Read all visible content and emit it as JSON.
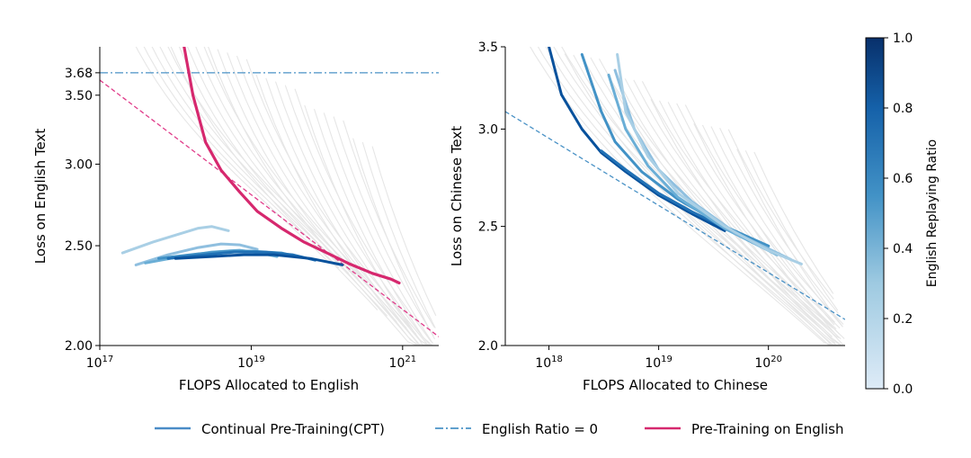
{
  "chart_data": [
    {
      "type": "line",
      "xlabel": "FLOPS Allocated to English",
      "ylabel": "Loss on English Text",
      "x_scale": "log",
      "y_scale": "log",
      "xlim": [
        1e+17,
        3e+21
      ],
      "ylim": [
        2.0,
        4.0
      ],
      "x_ticks": [
        {
          "value": 1e+17,
          "base": "10",
          "exp": "17"
        },
        {
          "value": 1e+19,
          "base": "10",
          "exp": "19"
        },
        {
          "value": 1e+21,
          "base": "10",
          "exp": "21"
        }
      ],
      "y_ticks": [
        {
          "value": 2.0,
          "label": "2.00"
        },
        {
          "value": 2.5,
          "label": "2.50"
        },
        {
          "value": 3.0,
          "label": "3.00"
        },
        {
          "value": 3.5,
          "label": "3.50"
        },
        {
          "value": 3.68,
          "label": "3.68"
        }
      ],
      "reference_lines": [
        {
          "name": "English Ratio = 0",
          "kind": "horizontal",
          "y": 3.68,
          "color": "#4a92c6",
          "style": "dashdot"
        },
        {
          "name": "Pre-Training on English fit",
          "kind": "segment",
          "color": "#e03c8a",
          "style": "dashed",
          "x": [
            1e+17,
            3e+21
          ],
          "y": [
            3.62,
            2.04
          ]
        }
      ],
      "series": [
        {
          "name": "Pre-Training on English",
          "color": "#d6286e",
          "x": [
            1.3e+18,
            1.7e+18,
            2.5e+18,
            4e+18,
            7e+18,
            1.2e+19,
            2.5e+19,
            5e+19,
            1e+20,
            2e+20,
            4e+20,
            7e+20,
            9e+20
          ],
          "y": [
            3.9,
            3.5,
            3.15,
            2.96,
            2.82,
            2.7,
            2.6,
            2.52,
            2.46,
            2.4,
            2.35,
            2.32,
            2.3
          ]
        },
        {
          "name": "CPT ratio 0.1",
          "color": "#a9cfe5",
          "x": [
            2e+17,
            5e+17,
            1e+18,
            2e+18,
            3e+18,
            5e+18
          ],
          "y": [
            2.46,
            2.52,
            2.56,
            2.6,
            2.61,
            2.585
          ]
        },
        {
          "name": "CPT ratio 0.2",
          "color": "#8fbfdf",
          "x": [
            3e+17,
            8e+17,
            2e+18,
            4e+18,
            7e+18,
            1.2e+19
          ],
          "y": [
            2.395,
            2.45,
            2.49,
            2.51,
            2.505,
            2.48
          ]
        },
        {
          "name": "CPT ratio 0.4",
          "color": "#6aaed6",
          "x": [
            4e+17,
            1e+18,
            3e+18,
            7e+18,
            1.3e+19,
            2.2e+19
          ],
          "y": [
            2.405,
            2.435,
            2.465,
            2.475,
            2.46,
            2.44
          ]
        },
        {
          "name": "CPT ratio 0.6",
          "color": "#4292c6",
          "x": [
            6e+17,
            2e+18,
            5e+18,
            1e+19,
            2.5e+19,
            4e+19
          ],
          "y": [
            2.43,
            2.455,
            2.47,
            2.47,
            2.46,
            2.44
          ]
        },
        {
          "name": "CPT ratio 0.8",
          "color": "#2171b5",
          "x": [
            8e+17,
            2.5e+18,
            6e+18,
            1.5e+19,
            3.5e+19,
            7e+19
          ],
          "y": [
            2.43,
            2.45,
            2.465,
            2.465,
            2.45,
            2.42
          ]
        },
        {
          "name": "CPT ratio 0.9",
          "color": "#08519c",
          "x": [
            1e+18,
            3e+18,
            8e+18,
            2e+19,
            6e+19,
            1.6e+20
          ],
          "y": [
            2.43,
            2.44,
            2.45,
            2.45,
            2.43,
            2.395
          ]
        }
      ]
    },
    {
      "type": "line",
      "xlabel": "FLOPS Allocated to Chinese",
      "ylabel": "Loss on Chinese Text",
      "x_scale": "log",
      "y_scale": "log",
      "xlim": [
        4e+17,
        5e+20
      ],
      "ylim": [
        2.0,
        3.5
      ],
      "x_ticks": [
        {
          "value": 1e+18,
          "base": "10",
          "exp": "18"
        },
        {
          "value": 1e+19,
          "base": "10",
          "exp": "19"
        },
        {
          "value": 1e+20,
          "base": "10",
          "exp": "20"
        }
      ],
      "y_ticks": [
        {
          "value": 2.0,
          "label": "2.0"
        },
        {
          "value": 2.5,
          "label": "2.5"
        },
        {
          "value": 3.0,
          "label": "3.0"
        },
        {
          "value": 3.5,
          "label": "3.5"
        }
      ],
      "reference_lines": [
        {
          "name": "English Ratio = 0",
          "kind": "segment",
          "color": "#4a92c6",
          "style": "dashed",
          "x": [
            4e+17,
            5e+20
          ],
          "y": [
            3.1,
            2.1
          ]
        }
      ],
      "series": [
        {
          "name": "CPT ratio 0.9",
          "color": "#08519c",
          "x": [
            1e+18,
            1.3e+18,
            2e+18,
            3e+18,
            5e+18,
            1e+19,
            2e+19,
            4e+19
          ],
          "y": [
            3.5,
            3.2,
            3.0,
            2.87,
            2.77,
            2.65,
            2.56,
            2.48
          ]
        },
        {
          "name": "CPT ratio 0.8",
          "color": "#2171b5",
          "x": [
            3e+18,
            5e+18,
            1e+19,
            2e+19,
            5e+19,
            1e+20
          ],
          "y": [
            2.88,
            2.78,
            2.66,
            2.57,
            2.47,
            2.41
          ]
        },
        {
          "name": "CPT ratio 0.6",
          "color": "#4292c6",
          "x": [
            2e+18,
            3e+18,
            4e+18,
            7e+18,
            1.5e+19,
            4e+19,
            1e+20
          ],
          "y": [
            3.45,
            3.1,
            2.93,
            2.77,
            2.63,
            2.5,
            2.41
          ]
        },
        {
          "name": "CPT ratio 0.4",
          "color": "#6aaed6",
          "x": [
            3.5e+18,
            5e+18,
            8e+18,
            1.5e+19,
            4e+19,
            1.2e+20
          ],
          "y": [
            3.32,
            3.0,
            2.8,
            2.64,
            2.49,
            2.37
          ]
        },
        {
          "name": "CPT ratio 0.2",
          "color": "#8fbfdf",
          "x": [
            4e+18,
            6e+18,
            1e+19,
            2e+19,
            5e+19,
            1.6e+20
          ],
          "y": [
            3.35,
            3.0,
            2.78,
            2.62,
            2.47,
            2.35
          ]
        },
        {
          "name": "CPT ratio 0.1",
          "color": "#a9cfe5",
          "x": [
            4.2e+18,
            5e+18,
            8e+18,
            1.5e+19,
            4e+19,
            1e+20,
            2e+20
          ],
          "y": [
            3.45,
            3.1,
            2.85,
            2.66,
            2.5,
            2.39,
            2.33
          ]
        }
      ]
    }
  ],
  "colorbar": {
    "label": "English Replaying Ratio",
    "range": [
      0.0,
      1.0
    ],
    "ticks": [
      "0.0",
      "0.2",
      "0.4",
      "0.6",
      "0.8",
      "1.0"
    ],
    "color_low": "#deebf7",
    "color_high": "#08306b"
  },
  "legend": {
    "placement": "bottom",
    "items": [
      {
        "label": "Continual Pre-Training(CPT)",
        "color": "#4a8cc7",
        "style": "solid"
      },
      {
        "label": "English Ratio = 0",
        "color": "#4a92c6",
        "style": "dashdot"
      },
      {
        "label": "Pre-Training on English",
        "color": "#d6286e",
        "style": "solid"
      }
    ]
  }
}
